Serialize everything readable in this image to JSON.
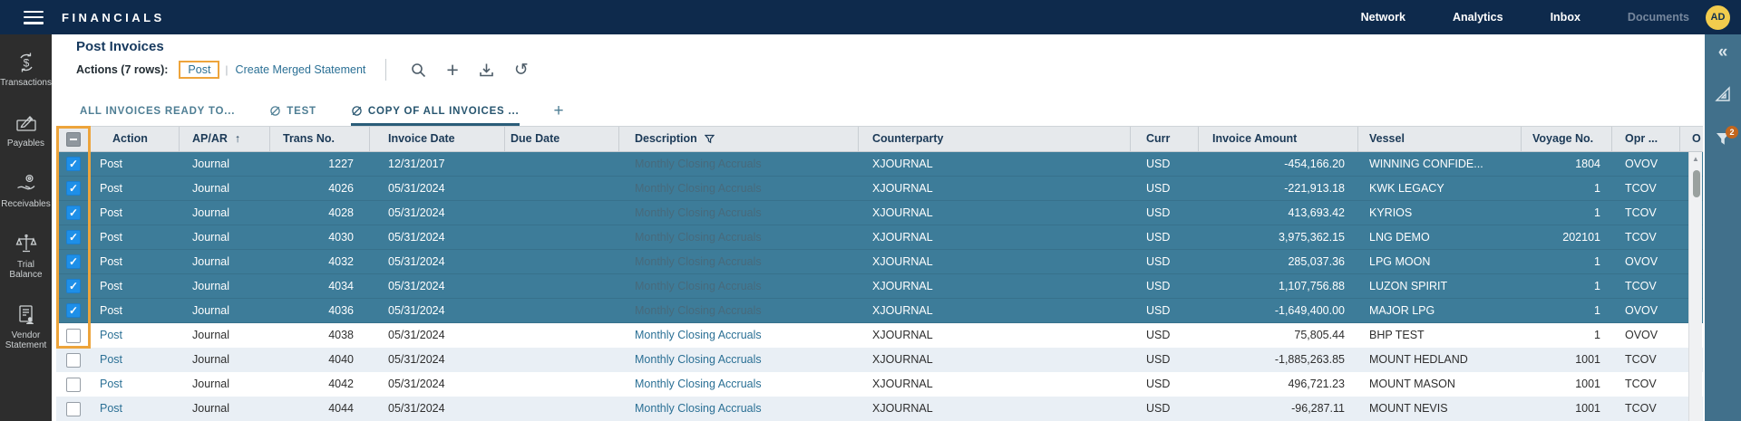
{
  "topbar": {
    "brand": "FINANCIALS",
    "nav": [
      {
        "label": "Network",
        "muted": false
      },
      {
        "label": "Analytics",
        "muted": false
      },
      {
        "label": "Inbox",
        "muted": false
      },
      {
        "label": "Documents",
        "muted": true
      }
    ],
    "avatar": "AD"
  },
  "sidebar": {
    "items": [
      {
        "label": "Transactions",
        "icon": "transactions-icon"
      },
      {
        "label": "Payables",
        "icon": "payables-icon"
      },
      {
        "label": "Receivables",
        "icon": "receivables-icon"
      },
      {
        "label": "Trial Balance",
        "icon": "trial-balance-icon"
      },
      {
        "label": "Vendor Statement",
        "icon": "vendor-statement-icon"
      }
    ]
  },
  "page": {
    "title": "Post Invoices",
    "actions_label": "Actions (7 rows):",
    "post_label": "Post",
    "create_merged_label": "Create Merged Statement",
    "toolbar_icons": [
      "search-icon",
      "plus-icon",
      "download-icon",
      "undo-icon"
    ]
  },
  "tabs": {
    "items": [
      {
        "label": "ALL INVOICES READY TO...",
        "hidden_icon": false,
        "active": false
      },
      {
        "label": "TEST",
        "hidden_icon": true,
        "active": false
      },
      {
        "label": "COPY OF ALL INVOICES ...",
        "hidden_icon": true,
        "active": true
      }
    ],
    "add_tab": "+"
  },
  "table": {
    "columns": [
      {
        "key": "select",
        "label": "",
        "type": "checkbox"
      },
      {
        "key": "action",
        "label": "Action"
      },
      {
        "key": "apar",
        "label": "AP/AR",
        "sort": "asc"
      },
      {
        "key": "trans_no",
        "label": "Trans No.",
        "align": "right"
      },
      {
        "key": "invoice_date",
        "label": "Invoice Date"
      },
      {
        "key": "due_date",
        "label": "Due Date"
      },
      {
        "key": "description",
        "label": "Description",
        "filter": true
      },
      {
        "key": "counterparty",
        "label": "Counterparty"
      },
      {
        "key": "curr",
        "label": "Curr"
      },
      {
        "key": "invoice_amount",
        "label": "Invoice Amount",
        "align": "right"
      },
      {
        "key": "vessel",
        "label": "Vessel"
      },
      {
        "key": "voyage_no",
        "label": "Voyage No.",
        "align": "right"
      },
      {
        "key": "opr",
        "label": "Opr ..."
      },
      {
        "key": "overflow",
        "label": "O"
      }
    ],
    "header_checkbox_state": "indeterminate",
    "rows": [
      {
        "selected": true,
        "action": "Post",
        "apar": "Journal",
        "trans_no": "1227",
        "invoice_date": "12/31/2017",
        "due_date": "",
        "description": "Monthly Closing Accruals",
        "counterparty": "XJOURNAL",
        "curr": "USD",
        "invoice_amount": "-454,166.20",
        "vessel": "WINNING CONFIDE...",
        "voyage_no": "1804",
        "opr": "OVOV"
      },
      {
        "selected": true,
        "action": "Post",
        "apar": "Journal",
        "trans_no": "4026",
        "invoice_date": "05/31/2024",
        "due_date": "",
        "description": "Monthly Closing Accruals",
        "counterparty": "XJOURNAL",
        "curr": "USD",
        "invoice_amount": "-221,913.18",
        "vessel": "KWK LEGACY",
        "voyage_no": "1",
        "opr": "TCOV"
      },
      {
        "selected": true,
        "action": "Post",
        "apar": "Journal",
        "trans_no": "4028",
        "invoice_date": "05/31/2024",
        "due_date": "",
        "description": "Monthly Closing Accruals",
        "counterparty": "XJOURNAL",
        "curr": "USD",
        "invoice_amount": "413,693.42",
        "vessel": "KYRIOS",
        "voyage_no": "1",
        "opr": "TCOV"
      },
      {
        "selected": true,
        "action": "Post",
        "apar": "Journal",
        "trans_no": "4030",
        "invoice_date": "05/31/2024",
        "due_date": "",
        "description": "Monthly Closing Accruals",
        "counterparty": "XJOURNAL",
        "curr": "USD",
        "invoice_amount": "3,975,362.15",
        "vessel": "LNG DEMO",
        "voyage_no": "202101",
        "opr": "TCOV"
      },
      {
        "selected": true,
        "action": "Post",
        "apar": "Journal",
        "trans_no": "4032",
        "invoice_date": "05/31/2024",
        "due_date": "",
        "description": "Monthly Closing Accruals",
        "counterparty": "XJOURNAL",
        "curr": "USD",
        "invoice_amount": "285,037.36",
        "vessel": "LPG MOON",
        "voyage_no": "1",
        "opr": "OVOV"
      },
      {
        "selected": true,
        "action": "Post",
        "apar": "Journal",
        "trans_no": "4034",
        "invoice_date": "05/31/2024",
        "due_date": "",
        "description": "Monthly Closing Accruals",
        "counterparty": "XJOURNAL",
        "curr": "USD",
        "invoice_amount": "1,107,756.88",
        "vessel": "LUZON SPIRIT",
        "voyage_no": "1",
        "opr": "TCOV"
      },
      {
        "selected": true,
        "action": "Post",
        "apar": "Journal",
        "trans_no": "4036",
        "invoice_date": "05/31/2024",
        "due_date": "",
        "description": "Monthly Closing Accruals",
        "counterparty": "XJOURNAL",
        "curr": "USD",
        "invoice_amount": "-1,649,400.00",
        "vessel": "MAJOR LPG",
        "voyage_no": "1",
        "opr": "OVOV"
      },
      {
        "selected": false,
        "action": "Post",
        "apar": "Journal",
        "trans_no": "4038",
        "invoice_date": "05/31/2024",
        "due_date": "",
        "description": "Monthly Closing Accruals",
        "counterparty": "XJOURNAL",
        "curr": "USD",
        "invoice_amount": "75,805.44",
        "vessel": "BHP TEST",
        "voyage_no": "1",
        "opr": "OVOV"
      },
      {
        "selected": false,
        "action": "Post",
        "apar": "Journal",
        "trans_no": "4040",
        "invoice_date": "05/31/2024",
        "due_date": "",
        "description": "Monthly Closing Accruals",
        "counterparty": "XJOURNAL",
        "curr": "USD",
        "invoice_amount": "-1,885,263.85",
        "vessel": "MOUNT HEDLAND",
        "voyage_no": "1001",
        "opr": "TCOV"
      },
      {
        "selected": false,
        "action": "Post",
        "apar": "Journal",
        "trans_no": "4042",
        "invoice_date": "05/31/2024",
        "due_date": "",
        "description": "Monthly Closing Accruals",
        "counterparty": "XJOURNAL",
        "curr": "USD",
        "invoice_amount": "496,721.23",
        "vessel": "MOUNT MASON",
        "voyage_no": "1001",
        "opr": "TCOV"
      },
      {
        "selected": false,
        "action": "Post",
        "apar": "Journal",
        "trans_no": "4044",
        "invoice_date": "05/31/2024",
        "due_date": "",
        "description": "Monthly Closing Accruals",
        "counterparty": "XJOURNAL",
        "curr": "USD",
        "invoice_amount": "-96,287.11",
        "vessel": "MOUNT NEVIS",
        "voyage_no": "1001",
        "opr": "TCOV"
      }
    ]
  },
  "right_panel": {
    "collapse_icon": "«",
    "filter_badge": "2",
    "icons": [
      "collapse-icon",
      "set-square-icon",
      "filter-icon"
    ]
  },
  "colors": {
    "topbar_navy": "#0e2a4c",
    "sidebar_gray": "#2d2d2d",
    "right_panel_teal": "#41708b",
    "selected_row_teal": "#3d7c99",
    "accent_orange": "#eda43b",
    "badge_orange": "#c2661e",
    "link_teal": "#2b7095",
    "avatar_yellow": "#f2cc4d",
    "alt_row": "#e9eff5",
    "header_bg": "#e6e9ec",
    "checkbox_blue": "#1e8fe8"
  }
}
